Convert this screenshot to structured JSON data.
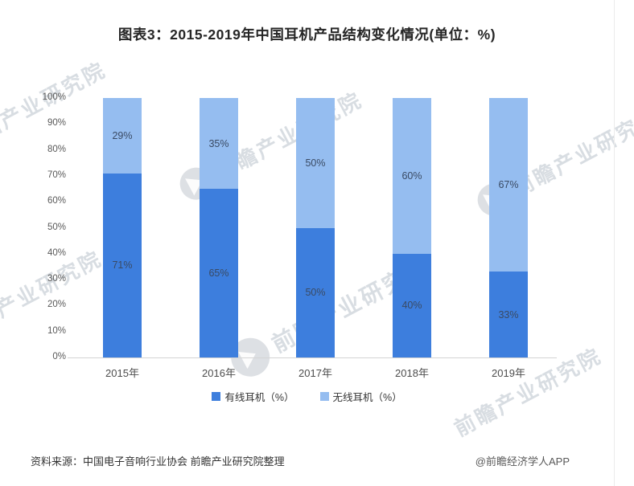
{
  "title": "图表3：2015-2019年中国耳机产品结构变化情况(单位：%)",
  "chart_data": {
    "type": "bar",
    "stacked": true,
    "title": "图表3：2015-2019年中国耳机产品结构变化情况(单位：%)",
    "categories": [
      "2015年",
      "2016年",
      "2017年",
      "2018年",
      "2019年"
    ],
    "series": [
      {
        "name": "有线耳机（%）",
        "color": "#3d7edd",
        "values": [
          71,
          65,
          50,
          40,
          33
        ]
      },
      {
        "name": "无线耳机（%）",
        "color": "#95bdf0",
        "values": [
          29,
          35,
          50,
          60,
          67
        ]
      }
    ],
    "ylim": [
      0,
      100
    ],
    "y_tick_step": 10,
    "y_tick_suffix": "%",
    "value_label_suffix": "%",
    "grid": false,
    "legend_position": "bottom"
  },
  "footer": {
    "source": "资料来源：中国电子音响行业协会 前瞻产业研究院整理",
    "credit": "@前瞻经济学人APP"
  },
  "watermark": {
    "text": "前瞻产业研究院"
  }
}
